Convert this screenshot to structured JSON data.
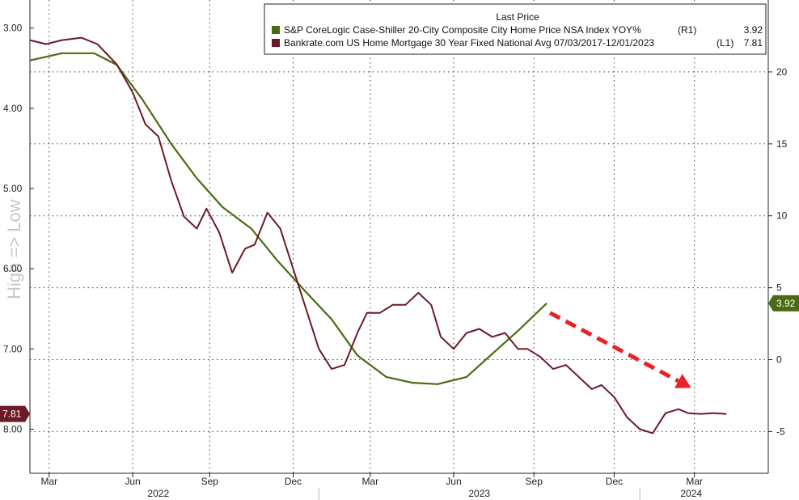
{
  "chart_data": {
    "type": "line",
    "title": "",
    "watermark": "High => Low",
    "legend": {
      "header": "Last Price",
      "placement": "top-right",
      "entries": [
        {
          "label": "S&P CoreLogic Case-Shiller 20-City Composite City Home Price NSA Index YOY%",
          "axis_tag": "(R1)",
          "last": "3.92",
          "color": "#4b6b12"
        },
        {
          "label": "Bankrate.com US Home Mortgage 30 Year Fixed National Avg 07/03/2017-12/01/2023",
          "axis_tag": "(L1)",
          "last": "7.81",
          "color": "#6e1a26"
        }
      ]
    },
    "x_axis": {
      "month_ticks": [
        "Mar",
        "Jun",
        "Sep",
        "Dec",
        "Mar",
        "Jun",
        "Sep",
        "Dec",
        "Mar"
      ],
      "month_tick_values": [
        2022.16,
        2022.42,
        2022.66,
        2022.92,
        2023.16,
        2023.42,
        2023.67,
        2023.92,
        2024.17
      ],
      "year_labels": [
        "2022",
        "2023",
        "2024"
      ],
      "year_label_values": [
        2022.5,
        2023.5,
        2024.16
      ],
      "range": [
        2022.1,
        2024.4
      ]
    },
    "left_axis": {
      "ticks": [
        "3.00",
        "4.00",
        "5.00",
        "6.00",
        "7.00",
        "8.00"
      ],
      "tick_values": [
        3,
        4,
        5,
        6,
        7,
        8
      ],
      "range": [
        2.65,
        8.55
      ],
      "inverted": true
    },
    "right_axis": {
      "ticks": [
        "20",
        "15",
        "10",
        "5",
        "0",
        "-5"
      ],
      "tick_values": [
        20,
        15,
        10,
        5,
        0,
        -5
      ],
      "range": [
        -7.9,
        25
      ]
    },
    "series": [
      {
        "name": "S&P CoreLogic Case-Shiller 20-City Composite City Home Price NSA Index YOY%",
        "axis": "right",
        "color": "#4b6b12",
        "last_label": "3.92",
        "x": [
          2022.1,
          2022.2,
          2022.3,
          2022.37,
          2022.45,
          2022.54,
          2022.62,
          2022.7,
          2022.79,
          2022.87,
          2022.96,
          2023.04,
          2023.12,
          2023.21,
          2023.29,
          2023.37,
          2023.46,
          2023.54,
          2023.62,
          2023.71
        ],
        "values": [
          20.8,
          21.3,
          21.3,
          20.5,
          18.1,
          15.0,
          12.6,
          10.6,
          9.1,
          6.9,
          4.7,
          2.8,
          0.3,
          -1.2,
          -1.6,
          -1.7,
          -1.2,
          0.4,
          2.0,
          3.92
        ]
      },
      {
        "name": "Bankrate.com US Home Mortgage 30 Year Fixed National Avg 07/03/2017-12/01/2023",
        "axis": "left",
        "color": "#6e1a26",
        "last_label": "7.81",
        "x": [
          2022.1,
          2022.15,
          2022.2,
          2022.26,
          2022.31,
          2022.37,
          2022.42,
          2022.46,
          2022.5,
          2022.54,
          2022.58,
          2022.62,
          2022.65,
          2022.69,
          2022.73,
          2022.77,
          2022.8,
          2022.84,
          2022.88,
          2022.92,
          2022.96,
          2023.0,
          2023.04,
          2023.08,
          2023.12,
          2023.15,
          2023.19,
          2023.23,
          2023.27,
          2023.31,
          2023.35,
          2023.38,
          2023.42,
          2023.46,
          2023.5,
          2023.54,
          2023.58,
          2023.62,
          2023.65,
          2023.69,
          2023.73,
          2023.77,
          2023.81,
          2023.85,
          2023.88,
          2023.92,
          2023.96,
          2024.0,
          2024.04,
          2024.08,
          2024.12,
          2024.15,
          2024.19,
          2024.23,
          2024.27
        ],
        "values": [
          3.15,
          3.2,
          3.15,
          3.12,
          3.2,
          3.45,
          3.8,
          4.2,
          4.35,
          4.9,
          5.35,
          5.5,
          5.25,
          5.55,
          6.05,
          5.75,
          5.7,
          5.3,
          5.5,
          6.0,
          6.5,
          7.0,
          7.25,
          7.2,
          6.8,
          6.55,
          6.55,
          6.45,
          6.45,
          6.3,
          6.45,
          6.85,
          7.0,
          6.8,
          6.75,
          6.85,
          6.8,
          7.0,
          7.0,
          7.1,
          7.25,
          7.2,
          7.35,
          7.5,
          7.45,
          7.6,
          7.85,
          8.0,
          8.05,
          7.8,
          7.75,
          7.8,
          7.81,
          7.8,
          7.81
        ]
      }
    ],
    "annotation": {
      "type": "arrow",
      "color": "#e8222a",
      "style": "dashed"
    }
  }
}
